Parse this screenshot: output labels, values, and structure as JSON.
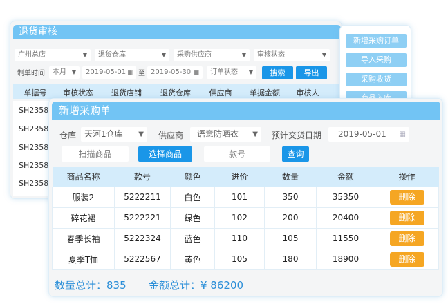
{
  "back": {
    "title": "退货审核",
    "filters": [
      "广州总店",
      "退货仓库",
      "采购供应商",
      "审核状态"
    ],
    "date_label": "制单时间",
    "period": "本月",
    "date_from": "2019-05-01",
    "to": "至",
    "date_to": "2019-05-30",
    "order_status": "订单状态",
    "search": "搜索",
    "export": "导出",
    "columns": [
      "单据号",
      "审核状态",
      "退货店铺",
      "退货仓库",
      "供应商",
      "单据金额",
      "审核人"
    ],
    "rows": [
      "SH2358",
      "SH2358",
      "SH2358",
      "SH2358",
      "SH2358"
    ]
  },
  "menu": [
    "新增采购订单",
    "导入采购",
    "采购收货",
    "商品入库"
  ],
  "front": {
    "title": "新增采购单",
    "warehouse_label": "仓库",
    "warehouse": "天河1仓库",
    "supplier_label": "供应商",
    "supplier": "语意防晒衣",
    "date_label": "预计交货日期",
    "date": "2019-05-01",
    "scan": "扫描商品",
    "choose": "选择商品",
    "style_no_placeholder": "款号",
    "query": "查询",
    "columns": [
      "商品名称",
      "款号",
      "颜色",
      "进价",
      "数量",
      "金额",
      "操作"
    ],
    "rows": [
      [
        "服装2",
        "5222211",
        "白色",
        "101",
        "350",
        "35350",
        "删除"
      ],
      [
        "碎花裙",
        "5222221",
        "绿色",
        "102",
        "200",
        "20400",
        "删除"
      ],
      [
        "春季长袖",
        "5222324",
        "蓝色",
        "110",
        "105",
        "11550",
        "删除"
      ],
      [
        "夏季T恤",
        "5222567",
        "黄色",
        "105",
        "180",
        "18900",
        "删除"
      ]
    ],
    "total_qty": "数量总计：835",
    "total_amount": "金额总计：¥ 86200"
  },
  "colors": {
    "header": "#72c4f4",
    "primary": "#1a96e8",
    "delete": "#f5a623",
    "total": "#2a8ed8"
  }
}
